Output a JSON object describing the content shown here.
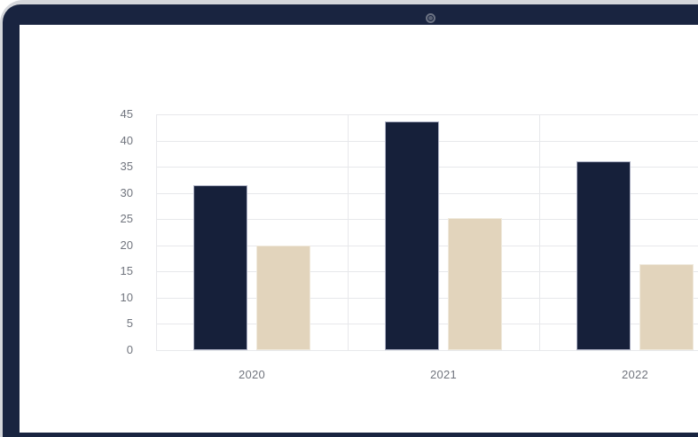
{
  "icons": {
    "webcam": "webcam-icon"
  },
  "colors": {
    "frame_silver": "#d5d7db",
    "bezel_navy": "#192440",
    "screen_white": "#ffffff",
    "bar_dark": "#16203a",
    "bar_tan": "#e2d4bc",
    "grid_line": "#e7e8eb",
    "axis_label": "#71757e"
  },
  "chart_data": {
    "type": "bar",
    "title": "",
    "xlabel": "",
    "ylabel": "",
    "categories": [
      "2020",
      "2021",
      "2022"
    ],
    "series": [
      {
        "name": "dark-navy-series",
        "color": "#16203a",
        "values": [
          31.4,
          43.6,
          36.0
        ]
      },
      {
        "name": "tan-series",
        "color": "#e2d4bc",
        "values": [
          20.0,
          25.2,
          16.4
        ]
      }
    ],
    "yticks": [
      0,
      5,
      10,
      15,
      20,
      25,
      30,
      35,
      40,
      45
    ],
    "ylim": [
      0,
      45
    ],
    "grid": true,
    "legend_position": "none",
    "notes": "right side of plot area cropped by viewport"
  }
}
